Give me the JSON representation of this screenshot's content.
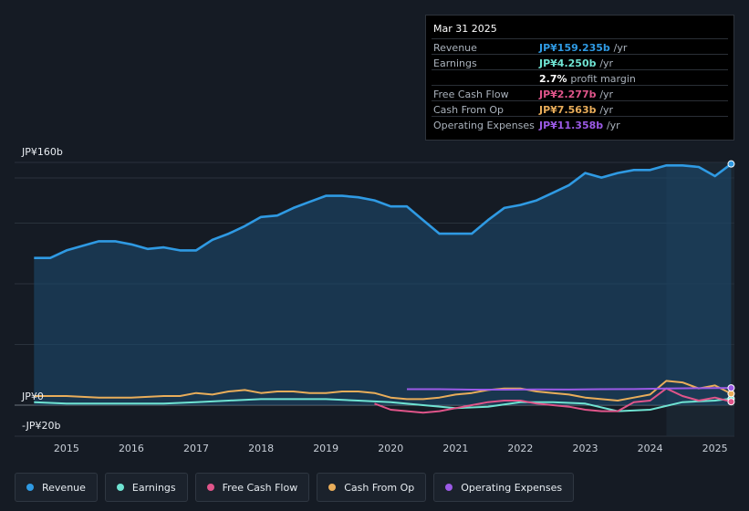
{
  "tooltip": {
    "date": "Mar 31 2025",
    "rows": [
      {
        "label": "Revenue",
        "value": "JP¥159.235b",
        "unit": "/yr",
        "color": "#2f9ae3"
      },
      {
        "label": "Earnings",
        "value": "JP¥4.250b",
        "unit": "/yr",
        "color": "#6fe3d2"
      },
      {
        "label": "",
        "value": "2.7%",
        "unit": "profit margin",
        "color": "#ffffff"
      },
      {
        "label": "Free Cash Flow",
        "value": "JP¥2.277b",
        "unit": "/yr",
        "color": "#e0558a"
      },
      {
        "label": "Cash From Op",
        "value": "JP¥7.563b",
        "unit": "/yr",
        "color": "#e9ad5a"
      },
      {
        "label": "Operating Expenses",
        "value": "JP¥11.358b",
        "unit": "/yr",
        "color": "#9b5ae6"
      }
    ]
  },
  "legend": [
    {
      "label": "Revenue",
      "color": "#2f9ae3"
    },
    {
      "label": "Earnings",
      "color": "#6fe3d2"
    },
    {
      "label": "Free Cash Flow",
      "color": "#e0558a"
    },
    {
      "label": "Cash From Op",
      "color": "#e9ad5a"
    },
    {
      "label": "Operating Expenses",
      "color": "#9b5ae6"
    }
  ],
  "chart_data": {
    "type": "area",
    "y_unit": "JP¥ billions",
    "ylim": [
      -20,
      160
    ],
    "y_ticks": [
      {
        "value": 160,
        "label": "JP¥160b"
      },
      {
        "value": 0,
        "label": "JP¥0"
      },
      {
        "value": -20,
        "label": "-JP¥20b"
      }
    ],
    "x_ticks": [
      {
        "value": 2015,
        "label": "2015"
      },
      {
        "value": 2016,
        "label": "2016"
      },
      {
        "value": 2017,
        "label": "2017"
      },
      {
        "value": 2018,
        "label": "2018"
      },
      {
        "value": 2019,
        "label": "2019"
      },
      {
        "value": 2020,
        "label": "2020"
      },
      {
        "value": 2021,
        "label": "2021"
      },
      {
        "value": 2022,
        "label": "2022"
      },
      {
        "value": 2023,
        "label": "2023"
      },
      {
        "value": 2024,
        "label": "2024"
      },
      {
        "value": 2025,
        "label": "2025"
      }
    ],
    "xlim": [
      2014.2,
      2025.3
    ],
    "highlight_start": 2024.25,
    "series": [
      {
        "name": "Revenue",
        "color": "#2f9ae3",
        "filled": true,
        "x": [
          2014.5,
          2014.75,
          2015.0,
          2015.25,
          2015.5,
          2015.75,
          2016.0,
          2016.25,
          2016.5,
          2016.75,
          2017.0,
          2017.25,
          2017.5,
          2017.75,
          2018.0,
          2018.25,
          2018.5,
          2018.75,
          2019.0,
          2019.25,
          2019.5,
          2019.75,
          2020.0,
          2020.25,
          2020.5,
          2020.75,
          2021.0,
          2021.25,
          2021.5,
          2021.75,
          2022.0,
          2022.25,
          2022.5,
          2022.75,
          2023.0,
          2023.25,
          2023.5,
          2023.75,
          2024.0,
          2024.25,
          2024.5,
          2024.75,
          2025.0,
          2025.25
        ],
        "values": [
          97,
          97,
          102,
          105,
          108,
          108,
          106,
          103,
          104,
          102,
          102,
          109,
          113,
          118,
          124,
          125,
          130,
          134,
          138,
          138,
          137,
          135,
          131,
          131,
          122,
          113,
          113,
          113,
          122,
          130,
          132,
          135,
          140,
          145,
          153,
          150,
          153,
          155,
          155,
          158,
          158,
          157,
          151,
          159
        ]
      },
      {
        "name": "Earnings",
        "color": "#6fe3d2",
        "filled": false,
        "x": [
          2014.5,
          2015.0,
          2015.5,
          2016.0,
          2016.5,
          2017.0,
          2017.5,
          2018.0,
          2018.5,
          2019.0,
          2019.5,
          2020.0,
          2020.5,
          2021.0,
          2021.5,
          2022.0,
          2022.5,
          2023.0,
          2023.5,
          2024.0,
          2024.5,
          2025.0,
          2025.25
        ],
        "values": [
          2,
          1,
          1,
          1,
          1,
          2,
          3,
          4,
          4,
          4,
          3,
          2,
          0,
          -2,
          -1,
          2,
          2,
          1,
          -4,
          -3,
          2,
          3,
          4.25
        ]
      },
      {
        "name": "Free Cash Flow",
        "color": "#e0558a",
        "filled": false,
        "x": [
          2019.75,
          2020.0,
          2020.25,
          2020.5,
          2020.75,
          2021.0,
          2021.25,
          2021.5,
          2021.75,
          2022.0,
          2022.25,
          2022.5,
          2022.75,
          2023.0,
          2023.25,
          2023.5,
          2023.75,
          2024.0,
          2024.25,
          2024.5,
          2024.75,
          2025.0,
          2025.25
        ],
        "values": [
          1,
          -3,
          -4,
          -5,
          -4,
          -2,
          0,
          2,
          3,
          3,
          1,
          0,
          -1,
          -3,
          -4,
          -4,
          2,
          3,
          11,
          6,
          3,
          5,
          2.277
        ]
      },
      {
        "name": "Cash From Op",
        "color": "#e9ad5a",
        "filled": false,
        "x": [
          2014.5,
          2015.0,
          2015.5,
          2016.0,
          2016.5,
          2016.75,
          2017.0,
          2017.25,
          2017.5,
          2017.75,
          2018.0,
          2018.25,
          2018.5,
          2018.75,
          2019.0,
          2019.25,
          2019.5,
          2019.75,
          2020.0,
          2020.25,
          2020.5,
          2020.75,
          2021.0,
          2021.25,
          2021.5,
          2021.75,
          2022.0,
          2022.25,
          2022.5,
          2022.75,
          2023.0,
          2023.25,
          2023.5,
          2023.75,
          2024.0,
          2024.25,
          2024.5,
          2024.75,
          2025.0,
          2025.25
        ],
        "values": [
          6,
          6,
          5,
          5,
          6,
          6,
          8,
          7,
          9,
          10,
          8,
          9,
          9,
          8,
          8,
          9,
          9,
          8,
          5,
          4,
          4,
          5,
          7,
          8,
          10,
          11,
          11,
          9,
          8,
          7,
          5,
          4,
          3,
          5,
          7,
          16,
          15,
          11,
          13,
          7.563
        ]
      },
      {
        "name": "Operating Expenses",
        "color": "#9b5ae6",
        "filled": false,
        "x": [
          2020.25,
          2020.75,
          2021.25,
          2021.75,
          2022.25,
          2022.75,
          2023.25,
          2023.75,
          2024.25,
          2024.75,
          2025.0,
          2025.25
        ],
        "values": [
          10.5,
          10.5,
          10.2,
          10.2,
          10.4,
          10.3,
          10.5,
          10.6,
          11.0,
          11.2,
          11.3,
          11.358
        ]
      }
    ]
  }
}
